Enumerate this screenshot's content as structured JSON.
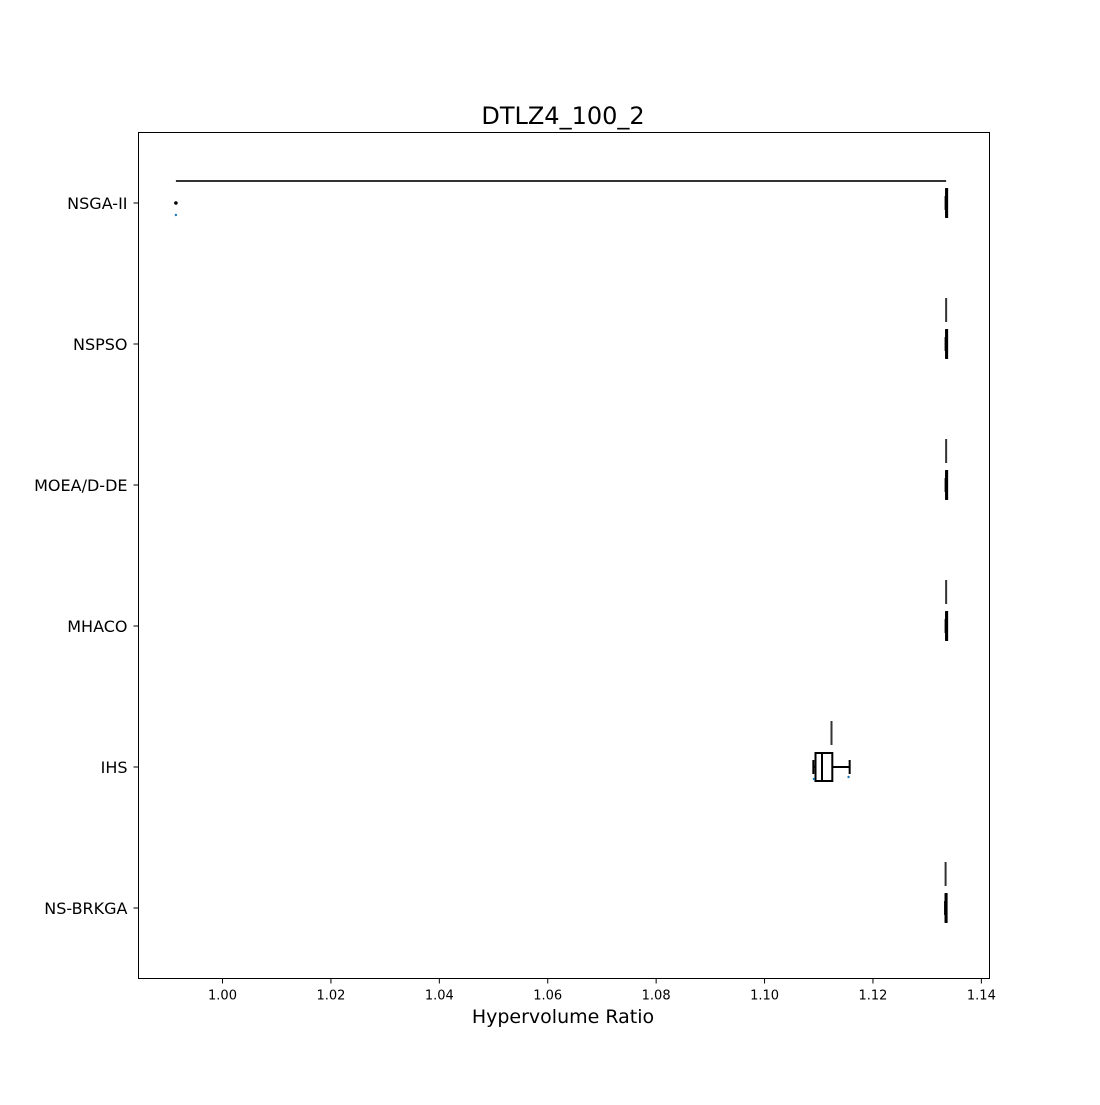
{
  "chart_data": {
    "type": "boxplot",
    "orientation": "horizontal",
    "title": "DTLZ4_100_2",
    "xlabel": "Hypervolume Ratio",
    "ylabel": "",
    "xlim": [
      0.9845,
      1.1415
    ],
    "xticks": [
      1.0,
      1.02,
      1.04,
      1.06,
      1.08,
      1.1,
      1.12,
      1.14
    ],
    "xtick_labels": [
      "1.00",
      "1.02",
      "1.04",
      "1.06",
      "1.08",
      "1.10",
      "1.12",
      "1.14"
    ],
    "grid": false,
    "legend": "none",
    "categories": [
      "NSGA-II",
      "NSPSO",
      "MOEA/D-DE",
      "MHACO",
      "IHS",
      "NS-BRKGA"
    ],
    "groups": [
      {
        "name": "NSGA-II",
        "range_bar": [
          0.9914,
          1.1335
        ],
        "box": {
          "whislo": 1.1334,
          "q1": 1.1335,
          "med": 1.1335,
          "q3": 1.1335,
          "whishi": 1.1336
        },
        "outliers": [
          0.9914
        ],
        "points": [
          0.9914
        ]
      },
      {
        "name": "NSPSO",
        "range_bar": [
          1.1334,
          1.1336
        ],
        "box": {
          "whislo": 1.1334,
          "q1": 1.1335,
          "med": 1.1335,
          "q3": 1.1335,
          "whishi": 1.1336
        },
        "outliers": [],
        "points": []
      },
      {
        "name": "MOEA/D-DE",
        "range_bar": [
          1.1335,
          1.1335
        ],
        "box": {
          "whislo": 1.1334,
          "q1": 1.1335,
          "med": 1.1335,
          "q3": 1.1335,
          "whishi": 1.1336
        },
        "outliers": [],
        "points": []
      },
      {
        "name": "MHACO",
        "range_bar": [
          1.1334,
          1.1336
        ],
        "box": {
          "whislo": 1.1334,
          "q1": 1.1335,
          "med": 1.1335,
          "q3": 1.1335,
          "whishi": 1.1336
        },
        "outliers": [],
        "points": []
      },
      {
        "name": "IHS",
        "range_bar": [
          1.109,
          1.1157
        ],
        "box": {
          "whislo": 1.109,
          "q1": 1.1094,
          "med": 1.1106,
          "q3": 1.1125,
          "whishi": 1.1157
        },
        "outliers": [],
        "points": [
          1.1091,
          1.1155
        ]
      },
      {
        "name": "NS-BRKGA",
        "range_bar": [
          1.1334,
          1.1334
        ],
        "box": {
          "whislo": 1.1333,
          "q1": 1.1334,
          "med": 1.1334,
          "q3": 1.1334,
          "whishi": 1.1335
        },
        "outliers": [],
        "points": []
      }
    ],
    "colors": {
      "box": "#000000",
      "range_bar": "#333333",
      "point": "#1f77b4"
    }
  }
}
